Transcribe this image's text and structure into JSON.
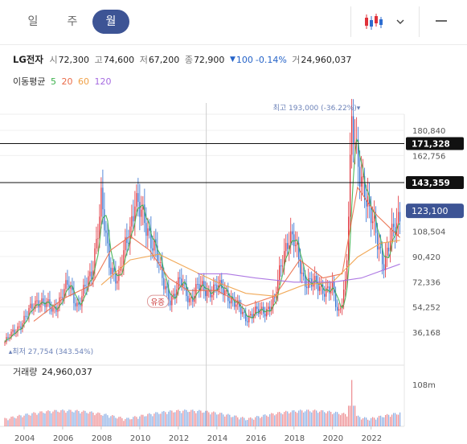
{
  "tabs": [
    {
      "label": "일",
      "active": false
    },
    {
      "label": "주",
      "active": false
    },
    {
      "label": "월",
      "active": true
    }
  ],
  "icons": {
    "chart_type": "candlestick-icon",
    "dropdown": "chevron-down-icon",
    "menu": "minus-icon"
  },
  "colors": {
    "up": "#e0313a",
    "down": "#2d6dd0",
    "ma5": "#3bb04b",
    "ma20": "#ea6b48",
    "ma60": "#f0a046",
    "ma120": "#a56ae0",
    "accent": "#3d5495"
  },
  "quote": {
    "name": "LG전자",
    "open_label": "시",
    "open": "72,300",
    "high_label": "고",
    "high": "74,600",
    "low_label": "저",
    "low": "67,200",
    "close_label": "종",
    "close": "72,900",
    "change_arrow": "▼",
    "change": "100",
    "change_pct": "-0.14%",
    "volume_label": "거",
    "volume": "24,960,037"
  },
  "moving_average": {
    "label": "이동평균",
    "periods": [
      "5",
      "20",
      "60",
      "120"
    ]
  },
  "chart_data": {
    "type": "candlestick",
    "period": "monthly",
    "x_ticks": [
      "2004",
      "2006",
      "2008",
      "2010",
      "2012",
      "2014",
      "2016",
      "2018",
      "2020",
      "2022"
    ],
    "y_ticks": [
      "180,840",
      "162,756",
      "108,504",
      "90,420",
      "72,336",
      "54,252",
      "36,168"
    ],
    "ylim": [
      18000,
      200000
    ],
    "xlim": [
      2003.0,
      2023.6
    ],
    "horizontal_lines": [
      {
        "value": 171328,
        "label": "171,328"
      },
      {
        "value": 143359,
        "label": "143,359"
      }
    ],
    "current_price": {
      "value": 123100,
      "label": "123,100"
    },
    "max": {
      "label": "최고",
      "value": 193000,
      "value_text": "193,000",
      "pct": "(-36.22%)",
      "x": 2021.0
    },
    "min": {
      "label": "최저",
      "value": 27754,
      "value_text": "27,754",
      "pct": "(343.54%)",
      "x": 2003.2
    },
    "annotation": {
      "label": "유증",
      "x": 2010.9,
      "y": 58000
    },
    "crosshair_x": 2013.45,
    "anchors": [
      [
        2003.0,
        29000
      ],
      [
        2004.0,
        45000
      ],
      [
        2004.7,
        60000
      ],
      [
        2005.5,
        52000
      ],
      [
        2006.3,
        70000
      ],
      [
        2006.8,
        55000
      ],
      [
        2007.5,
        78000
      ],
      [
        2008.0,
        130000
      ],
      [
        2008.4,
        85000
      ],
      [
        2008.9,
        75000
      ],
      [
        2009.5,
        110000
      ],
      [
        2009.75,
        135000
      ],
      [
        2010.3,
        110000
      ],
      [
        2010.8,
        100000
      ],
      [
        2011.2,
        70000
      ],
      [
        2011.6,
        60000
      ],
      [
        2012.1,
        72000
      ],
      [
        2012.6,
        60000
      ],
      [
        2013.0,
        68000
      ],
      [
        2013.5,
        66000
      ],
      [
        2014.0,
        68000
      ],
      [
        2014.5,
        65000
      ],
      [
        2015.0,
        55000
      ],
      [
        2015.5,
        47000
      ],
      [
        2016.0,
        50000
      ],
      [
        2016.5,
        52000
      ],
      [
        2017.0,
        58000
      ],
      [
        2017.4,
        90000
      ],
      [
        2017.7,
        105000
      ],
      [
        2018.0,
        100000
      ],
      [
        2018.5,
        75000
      ],
      [
        2019.0,
        70000
      ],
      [
        2019.5,
        68000
      ],
      [
        2020.0,
        66000
      ],
      [
        2020.3,
        48000
      ],
      [
        2020.7,
        75000
      ],
      [
        2020.9,
        145000
      ],
      [
        2021.0,
        180000
      ],
      [
        2021.3,
        160000
      ],
      [
        2021.6,
        145000
      ],
      [
        2021.9,
        120000
      ],
      [
        2022.3,
        105000
      ],
      [
        2022.7,
        85000
      ],
      [
        2022.9,
        95000
      ],
      [
        2023.2,
        110000
      ],
      [
        2023.5,
        123100
      ]
    ],
    "ma_series": {
      "ma20": [
        [
          2004.5,
          44000
        ],
        [
          2006,
          60000
        ],
        [
          2007.5,
          70000
        ],
        [
          2008.5,
          95000
        ],
        [
          2009.5,
          105000
        ],
        [
          2010.5,
          95000
        ],
        [
          2011.5,
          75000
        ],
        [
          2012.5,
          66000
        ],
        [
          2014,
          66000
        ],
        [
          2015.5,
          55000
        ],
        [
          2017,
          62000
        ],
        [
          2018.3,
          88000
        ],
        [
          2019.5,
          75000
        ],
        [
          2020.5,
          78000
        ],
        [
          2021.3,
          140000
        ],
        [
          2022.3,
          120000
        ],
        [
          2023.5,
          104000
        ]
      ],
      "ma60": [
        [
          2008.0,
          70000
        ],
        [
          2009.5,
          88000
        ],
        [
          2011,
          92000
        ],
        [
          2012.5,
          82000
        ],
        [
          2014,
          72000
        ],
        [
          2015.5,
          64000
        ],
        [
          2017,
          62000
        ],
        [
          2018.5,
          70000
        ],
        [
          2020,
          72000
        ],
        [
          2021.3,
          90000
        ],
        [
          2022.5,
          100000
        ],
        [
          2023.5,
          102000
        ]
      ],
      "ma120": [
        [
          2013.0,
          78000
        ],
        [
          2014.5,
          78000
        ],
        [
          2016,
          75000
        ],
        [
          2018,
          72000
        ],
        [
          2020,
          72000
        ],
        [
          2021.5,
          75000
        ],
        [
          2023.5,
          85000
        ]
      ]
    },
    "volume": {
      "label": "거래량",
      "value": "24,960,037",
      "axis_tick": "108m",
      "spike": {
        "x": 2021.0,
        "value": 108
      }
    }
  }
}
